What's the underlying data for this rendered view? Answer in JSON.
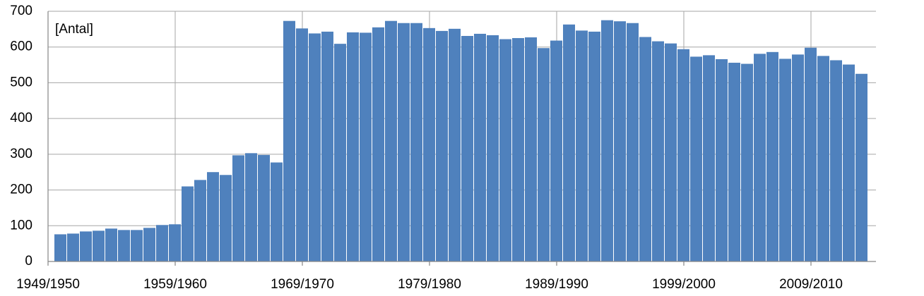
{
  "chart_data": {
    "type": "bar",
    "annotation": "[Antal]",
    "color": "#4f81bd",
    "grid": true,
    "categories": [
      "1949/1950",
      null,
      null,
      null,
      null,
      null,
      null,
      null,
      null,
      null,
      "1959/1960",
      null,
      null,
      null,
      null,
      null,
      null,
      null,
      null,
      null,
      "1969/1970",
      null,
      null,
      null,
      null,
      null,
      null,
      null,
      null,
      null,
      "1979/1980",
      null,
      null,
      null,
      null,
      null,
      null,
      null,
      null,
      null,
      "1989/1990",
      null,
      null,
      null,
      null,
      null,
      null,
      null,
      null,
      null,
      "1999/2000",
      null,
      null,
      null,
      null,
      null,
      null,
      null,
      null,
      null,
      "2009/2010",
      null,
      null,
      null
    ],
    "values": [
      76,
      78,
      84,
      86,
      92,
      88,
      88,
      94,
      102,
      104,
      210,
      228,
      250,
      242,
      297,
      303,
      298,
      277,
      673,
      652,
      638,
      643,
      609,
      641,
      640,
      655,
      673,
      667,
      667,
      653,
      645,
      651,
      631,
      637,
      633,
      622,
      625,
      627,
      597,
      618,
      663,
      646,
      643,
      675,
      672,
      667,
      628,
      616,
      610,
      594,
      573,
      577,
      566,
      556,
      553,
      581,
      586,
      567,
      579,
      598,
      575,
      563,
      551,
      525
    ],
    "ylim": [
      0,
      700
    ],
    "yticks": [
      0,
      100,
      200,
      300,
      400,
      500,
      600,
      700
    ]
  }
}
